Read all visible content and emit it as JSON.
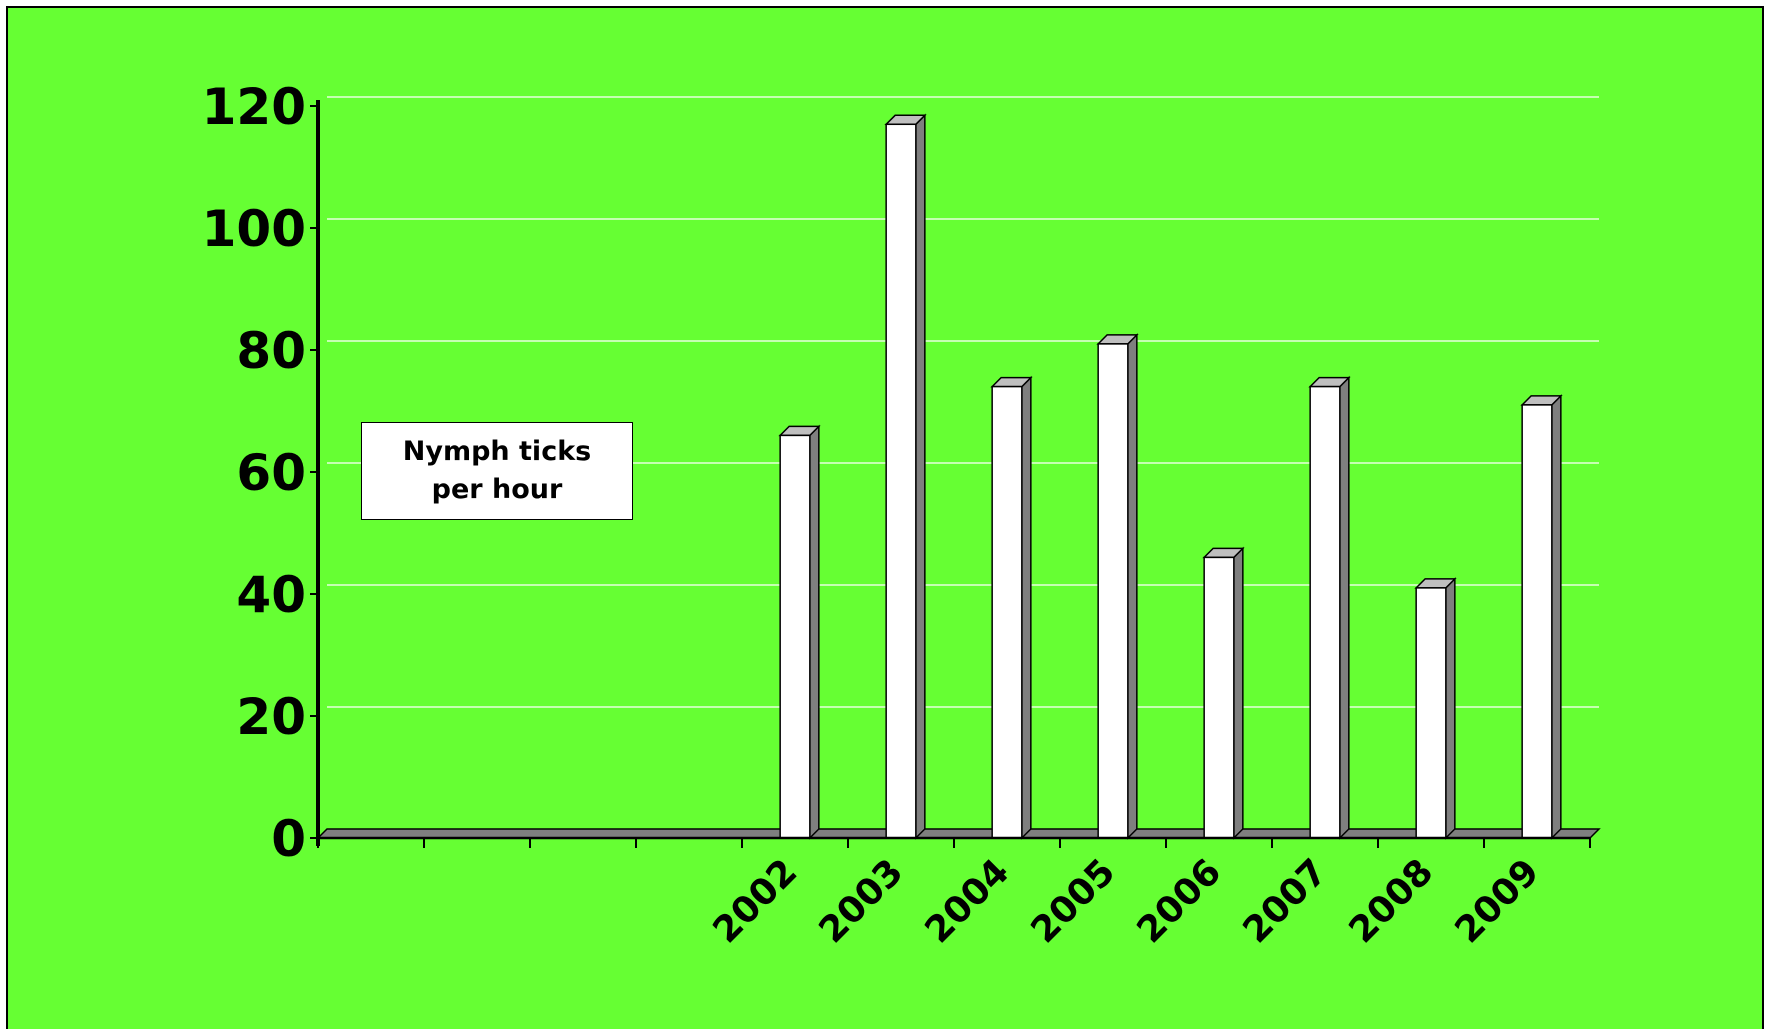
{
  "colors": {
    "background": "#66ff33",
    "bar_face": "#ffffff",
    "bar_side": "#7f7f7f",
    "bar_top": "#bfbfbf",
    "gridline": "#ffffff",
    "axis": "#000000"
  },
  "chart_data": {
    "type": "bar",
    "title": "",
    "xlabel": "",
    "ylabel": "",
    "categories": [
      "",
      "",
      "",
      "",
      "2002",
      "2003",
      "2004",
      "2005",
      "2006",
      "2007",
      "2008",
      "2009"
    ],
    "series": [
      {
        "name": "Nymph ticks per hour",
        "values": [
          null,
          null,
          null,
          null,
          66,
          117,
          74,
          81,
          46,
          74,
          41,
          71
        ]
      }
    ],
    "y_ticks": [
      "0",
      "20",
      "40",
      "60",
      "80",
      "100",
      "120"
    ],
    "ylim": [
      0,
      120
    ],
    "grid": true,
    "bar_style": "3d",
    "legend": {
      "placement": "left-middle",
      "label": "Nymph ticks per hour"
    }
  }
}
